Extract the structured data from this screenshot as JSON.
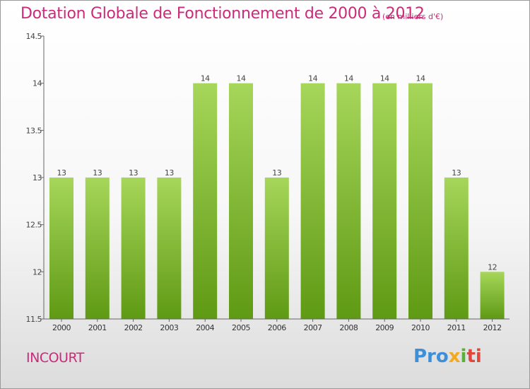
{
  "chart_data": {
    "type": "bar",
    "title": "Dotation Globale de Fonctionnement de 2000 à 2012",
    "subtitle": "(en milliers d'€)",
    "categories": [
      "2000",
      "2001",
      "2002",
      "2003",
      "2004",
      "2005",
      "2006",
      "2007",
      "2008",
      "2009",
      "2010",
      "2011",
      "2012"
    ],
    "values": [
      13,
      13,
      13,
      13,
      14,
      14,
      13,
      14,
      14,
      14,
      14,
      13,
      12
    ],
    "data_labels": [
      "13",
      "13",
      "13",
      "13",
      "14",
      "14",
      "13",
      "14",
      "14",
      "14",
      "14",
      "13",
      "12"
    ],
    "ylim": [
      11.5,
      14.5
    ],
    "yticks": [
      11.5,
      12,
      12.5,
      13,
      13.5,
      14,
      14.5
    ],
    "ytick_labels": [
      "11.5",
      "12",
      "12.5",
      "13",
      "13.5",
      "14",
      "14.5"
    ],
    "grid": false,
    "bar_color": "#8cc43f",
    "xlabel": "",
    "ylabel": ""
  },
  "footer": {
    "commune": "INCOURT",
    "logo": {
      "p1": "Pro",
      "p2": "x",
      "p3": "i",
      "p4": "ti"
    }
  },
  "colors": {
    "title": "#cc2a7a",
    "axis": "#555555",
    "bar_top": "#a6d65a",
    "bar_bottom": "#5f9a14"
  }
}
